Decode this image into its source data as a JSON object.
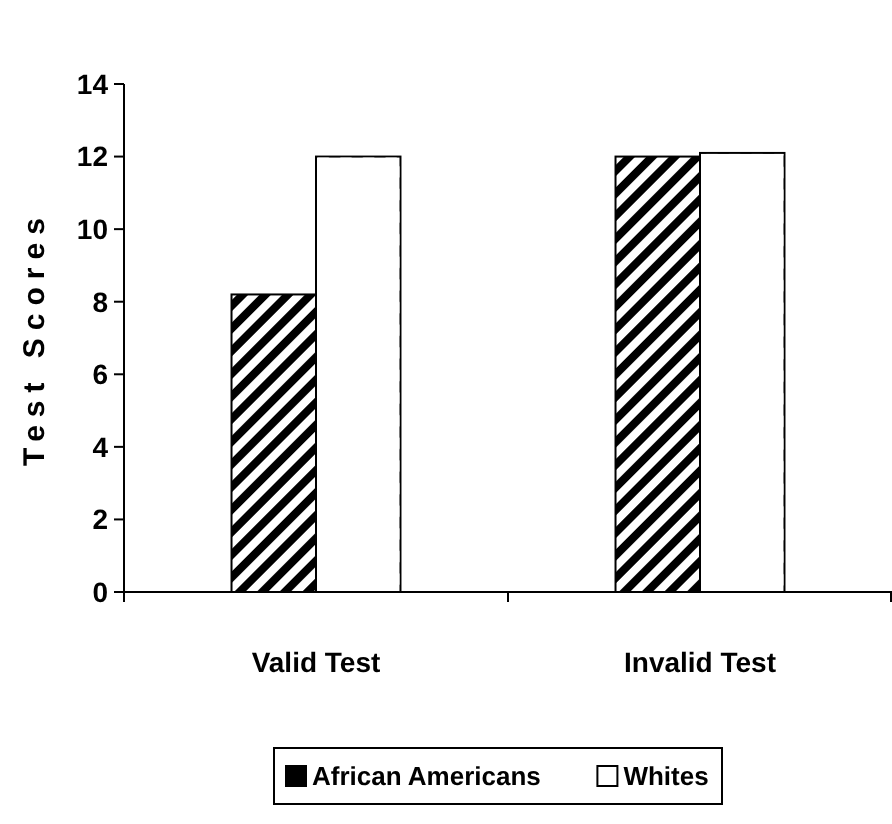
{
  "chart_data": {
    "type": "bar",
    "ylabel": "Test Scores",
    "categories": [
      "Valid Test",
      "Invalid Test"
    ],
    "series": [
      {
        "name": "African Americans",
        "color": "#000000",
        "values": [
          8.2,
          12
        ]
      },
      {
        "name": "Whites",
        "color": "#ffffff",
        "values": [
          12,
          12.1
        ]
      }
    ],
    "ylim": [
      0,
      14
    ],
    "yticks": [
      0,
      2,
      4,
      6,
      8,
      10,
      12,
      14
    ],
    "grid": false,
    "legend": "bottom"
  }
}
